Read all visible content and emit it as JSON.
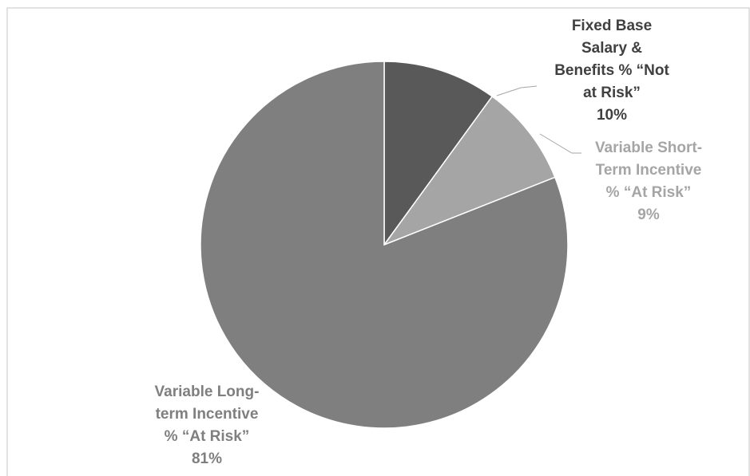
{
  "chart_data": {
    "type": "pie",
    "title": "",
    "slices": [
      {
        "label_lines": [
          "Fixed Base",
          "Salary &",
          "Benefits % “Not",
          "at Risk”"
        ],
        "value": 10,
        "value_label": "10%",
        "color": "#595959",
        "label_color": "#404040"
      },
      {
        "label_lines": [
          "Variable Short-",
          "Term Incentive",
          "% “At Risk”"
        ],
        "value": 9,
        "value_label": "9%",
        "color": "#a5a5a5",
        "label_color": "#a5a5a5"
      },
      {
        "label_lines": [
          "Variable Long-",
          "term Incentive",
          "% “At Risk”"
        ],
        "value": 81,
        "value_label": "81%",
        "color": "#7f7f7f",
        "label_color": "#7f7f7f"
      }
    ]
  }
}
